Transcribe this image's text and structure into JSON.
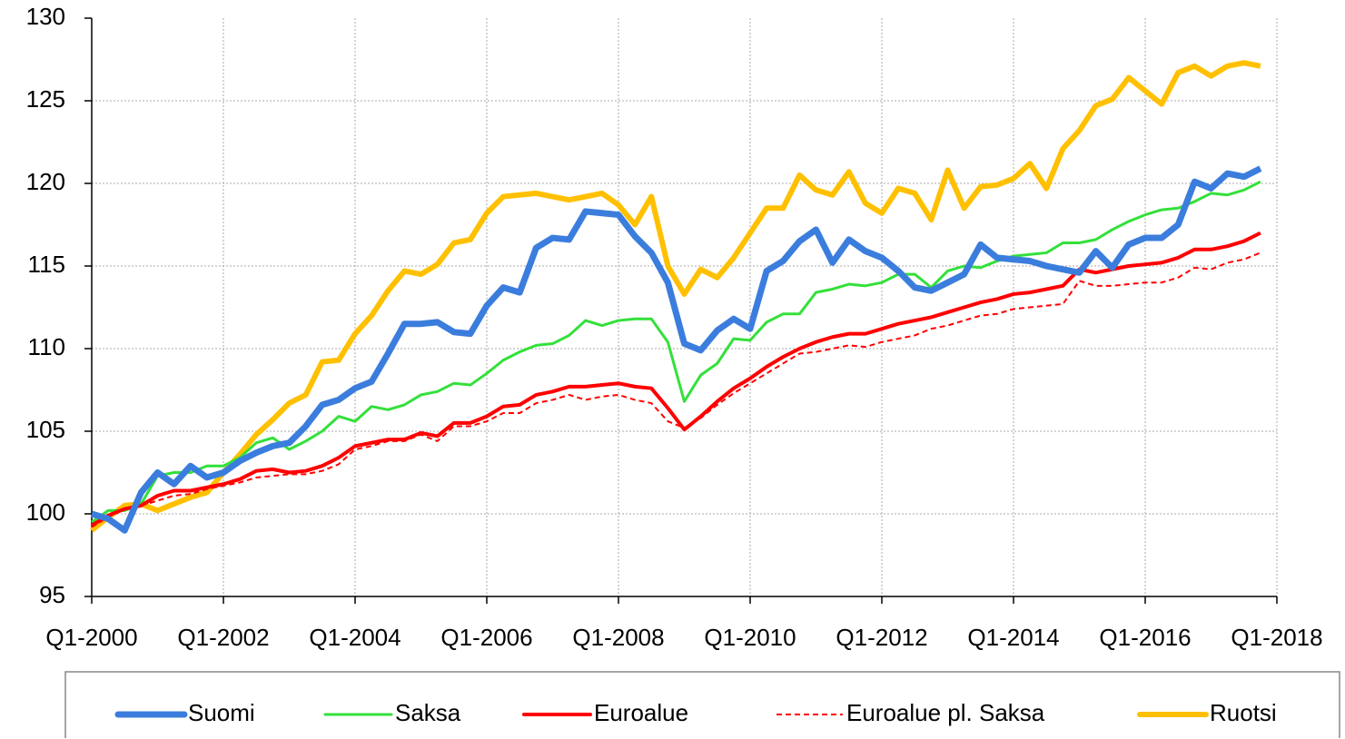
{
  "chart_data": {
    "type": "line",
    "categories": [
      "Q1-2000",
      null,
      null,
      null,
      null,
      null,
      null,
      null,
      "Q1-2002",
      null,
      null,
      null,
      null,
      null,
      null,
      null,
      "Q1-2004",
      null,
      null,
      null,
      null,
      null,
      null,
      null,
      "Q1-2006",
      null,
      null,
      null,
      null,
      null,
      null,
      null,
      "Q1-2008",
      null,
      null,
      null,
      null,
      null,
      null,
      null,
      "Q1-2010",
      null,
      null,
      null,
      null,
      null,
      null,
      null,
      "Q1-2012",
      null,
      null,
      null,
      null,
      null,
      null,
      null,
      "Q1-2014",
      null,
      null,
      null,
      null,
      null,
      null,
      null,
      "Q1-2016",
      null,
      null,
      null,
      null,
      null,
      null,
      null,
      "Q1-2018"
    ],
    "series": [
      {
        "name": "Suomi",
        "color": "#3b7ddd",
        "values": [
          100.0,
          99.7,
          99.0,
          101.3,
          102.5,
          101.8,
          102.9,
          102.2,
          102.5,
          103.2,
          103.7,
          104.1,
          104.3,
          105.3,
          106.6,
          106.9,
          107.6,
          108.0,
          109.7,
          111.5,
          111.5,
          111.6,
          111.0,
          110.9,
          112.6,
          113.7,
          113.4,
          116.1,
          116.7,
          116.6,
          118.3,
          118.2,
          118.1,
          116.8,
          115.8,
          114.0,
          110.3,
          109.9,
          111.1,
          111.8,
          111.2,
          114.7,
          115.3,
          116.5,
          117.2,
          115.2,
          116.6,
          115.9,
          115.5,
          114.7,
          113.7,
          113.5,
          114.0,
          114.5,
          116.3,
          115.5,
          115.4,
          115.3,
          115.0,
          114.8,
          114.6,
          115.9,
          114.9,
          116.3,
          116.7,
          116.7,
          117.5,
          120.1,
          119.7,
          120.6,
          120.4,
          120.9,
          null
        ]
      },
      {
        "name": "Saksa",
        "color": "#33e03a",
        "values": [
          99.5,
          100.2,
          100.2,
          100.6,
          102.3,
          102.5,
          102.5,
          102.9,
          102.9,
          103.4,
          104.3,
          104.6,
          103.9,
          104.4,
          105.0,
          105.9,
          105.6,
          106.5,
          106.3,
          106.6,
          107.2,
          107.4,
          107.9,
          107.8,
          108.5,
          109.3,
          109.8,
          110.2,
          110.3,
          110.8,
          111.7,
          111.4,
          111.7,
          111.8,
          111.8,
          110.4,
          106.8,
          108.4,
          109.1,
          110.6,
          110.5,
          111.6,
          112.1,
          112.1,
          113.4,
          113.6,
          113.9,
          113.8,
          114.0,
          114.5,
          114.5,
          113.7,
          114.7,
          115.0,
          114.9,
          115.3,
          115.6,
          115.7,
          115.8,
          116.4,
          116.4,
          116.6,
          117.2,
          117.7,
          118.1,
          118.4,
          118.5,
          118.9,
          119.4,
          119.3,
          119.6,
          120.1,
          null
        ]
      },
      {
        "name": "Euroalue",
        "color": "#ff0000",
        "values": [
          99.3,
          99.9,
          100.3,
          100.5,
          101.1,
          101.4,
          101.4,
          101.6,
          101.8,
          102.1,
          102.6,
          102.7,
          102.5,
          102.6,
          102.9,
          103.4,
          104.1,
          104.3,
          104.5,
          104.5,
          104.9,
          104.7,
          105.5,
          105.5,
          105.9,
          106.5,
          106.6,
          107.2,
          107.4,
          107.7,
          107.7,
          107.8,
          107.9,
          107.7,
          107.6,
          106.4,
          105.1,
          105.9,
          106.8,
          107.6,
          108.2,
          108.9,
          109.5,
          110.0,
          110.4,
          110.7,
          110.9,
          110.9,
          111.2,
          111.5,
          111.7,
          111.9,
          112.2,
          112.5,
          112.8,
          113.0,
          113.3,
          113.4,
          113.6,
          113.8,
          114.8,
          114.6,
          114.8,
          115.0,
          115.1,
          115.2,
          115.5,
          116.0,
          116.0,
          116.2,
          116.5,
          117.0,
          null
        ]
      },
      {
        "name": "Euroalue pl. Saksa",
        "color": "#ff0000",
        "dashed": true,
        "values": [
          99.2,
          99.8,
          100.3,
          100.5,
          100.8,
          101.1,
          101.2,
          101.5,
          101.7,
          101.9,
          102.2,
          102.3,
          102.4,
          102.4,
          102.6,
          103.0,
          103.9,
          104.1,
          104.4,
          104.4,
          104.8,
          104.4,
          105.3,
          105.3,
          105.6,
          106.1,
          106.1,
          106.7,
          106.9,
          107.2,
          106.9,
          107.1,
          107.2,
          106.9,
          106.7,
          105.6,
          105.2,
          105.8,
          106.6,
          107.3,
          107.9,
          108.5,
          109.1,
          109.7,
          109.8,
          110.0,
          110.2,
          110.1,
          110.4,
          110.6,
          110.8,
          111.2,
          111.4,
          111.7,
          112.0,
          112.1,
          112.4,
          112.5,
          112.6,
          112.7,
          114.1,
          113.8,
          113.8,
          113.9,
          114.0,
          114.0,
          114.3,
          114.9,
          114.8,
          115.2,
          115.4,
          115.8,
          null
        ]
      },
      {
        "name": "Ruotsi",
        "color": "#ffc000",
        "values": [
          99.0,
          99.8,
          100.5,
          100.6,
          100.2,
          100.6,
          101.0,
          101.3,
          102.5,
          103.6,
          104.8,
          105.7,
          106.7,
          107.2,
          109.2,
          109.3,
          110.9,
          112.0,
          113.5,
          114.7,
          114.5,
          115.1,
          116.4,
          116.6,
          118.2,
          119.2,
          119.3,
          119.4,
          119.2,
          119.0,
          119.2,
          119.4,
          118.7,
          117.5,
          119.2,
          115.0,
          113.3,
          114.8,
          114.3,
          115.5,
          117.0,
          118.5,
          118.5,
          120.5,
          119.6,
          119.3,
          120.7,
          118.8,
          118.2,
          119.7,
          119.4,
          117.8,
          120.8,
          118.5,
          119.8,
          119.9,
          120.3,
          121.2,
          119.7,
          122.1,
          123.2,
          124.7,
          125.1,
          126.4,
          125.6,
          124.8,
          126.7,
          127.1,
          126.5,
          127.1,
          127.3,
          127.1,
          null
        ]
      }
    ],
    "ylim": [
      95,
      130
    ],
    "yticks": [
      95,
      100,
      105,
      110,
      115,
      120,
      125,
      130
    ],
    "grid": true,
    "legend": "bottom"
  }
}
